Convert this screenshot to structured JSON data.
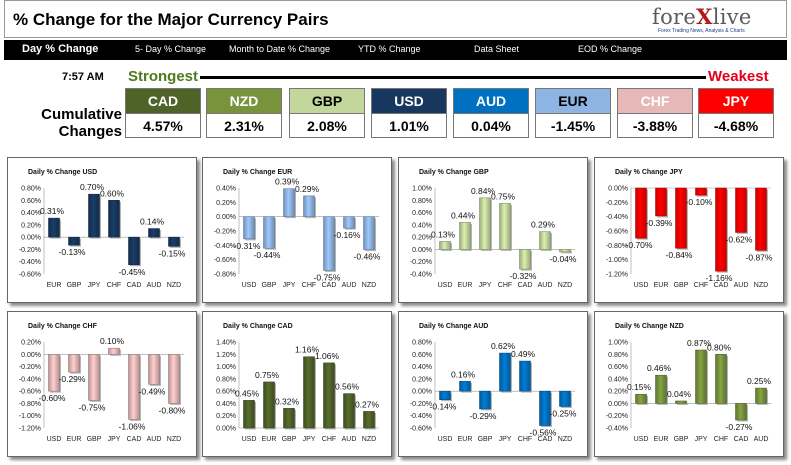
{
  "header": {
    "title": "% Change for the Major Currency Pairs",
    "logo_text_a": "fore",
    "logo_text_x": "X",
    "logo_text_b": "live",
    "logo_tagline": "Forex Trading News, Analysis & Charts"
  },
  "tabs": [
    {
      "label": "Day % Change",
      "active": true
    },
    {
      "label": "5- Day % Change"
    },
    {
      "label": "Month to Date % Change"
    },
    {
      "label": "YTD % Change"
    },
    {
      "label": "Data Sheet"
    },
    {
      "label": "EOD % Change"
    }
  ],
  "summary": {
    "time": "7:57 AM",
    "strongest_label": "Strongest",
    "weakest_label": "Weakest",
    "cumulative_label_line1": "Cumulative",
    "cumulative_label_line2": "Changes",
    "currencies": [
      {
        "code": "CAD",
        "value": "4.57%",
        "bg": "#4f6228",
        "fg": "#ffffff"
      },
      {
        "code": "NZD",
        "value": "2.31%",
        "bg": "#77933c",
        "fg": "#ffffff"
      },
      {
        "code": "GBP",
        "value": "2.08%",
        "bg": "#c3d69b",
        "fg": "#000000"
      },
      {
        "code": "USD",
        "value": "1.01%",
        "bg": "#17375e",
        "fg": "#ffffff"
      },
      {
        "code": "AUD",
        "value": "0.04%",
        "bg": "#0070c0",
        "fg": "#ffffff"
      },
      {
        "code": "EUR",
        "value": "-1.45%",
        "bg": "#8eb4e3",
        "fg": "#000000"
      },
      {
        "code": "CHF",
        "value": "-3.88%",
        "bg": "#e6b9b8",
        "fg": "#ffffff"
      },
      {
        "code": "JPY",
        "value": "-4.68%",
        "bg": "#ff0000",
        "fg": "#ffffff"
      }
    ]
  },
  "chart_data": [
    {
      "type": "bar",
      "title": "Daily % Change USD",
      "categories": [
        "EUR",
        "GBP",
        "JPY",
        "CHF",
        "CAD",
        "AUD",
        "NZD"
      ],
      "values": [
        0.31,
        -0.13,
        0.7,
        0.6,
        -0.45,
        0.14,
        -0.15
      ],
      "labels": [
        "0.31%",
        "-0.13%",
        "0.70%",
        "0.60%",
        "-0.45%",
        "0.14%",
        "-0.15%"
      ],
      "ylim": [
        -0.6,
        0.8
      ],
      "yticks": [
        "0.80%",
        "0.60%",
        "0.40%",
        "0.20%",
        "0.00%",
        "-0.20%",
        "-0.40%",
        "-0.60%"
      ],
      "color": "#17375e"
    },
    {
      "type": "bar",
      "title": "Daily % Change EUR",
      "categories": [
        "USD",
        "GBP",
        "JPY",
        "CHF",
        "CAD",
        "AUD",
        "NZD"
      ],
      "values": [
        -0.31,
        -0.44,
        0.39,
        0.29,
        -0.75,
        -0.16,
        -0.46
      ],
      "labels": [
        "-0.31%",
        "-0.44%",
        "0.39%",
        "0.29%",
        "-0.75%",
        "-0.16%",
        "-0.46%"
      ],
      "ylim": [
        -0.8,
        0.4
      ],
      "yticks": [
        "0.40%",
        "0.20%",
        "0.00%",
        "-0.20%",
        "-0.40%",
        "-0.60%",
        "-0.80%"
      ],
      "color": "#8eb4e3"
    },
    {
      "type": "bar",
      "title": "Daily % Change GBP",
      "categories": [
        "USD",
        "EUR",
        "JPY",
        "CHF",
        "CAD",
        "AUD",
        "NZD"
      ],
      "values": [
        0.13,
        0.44,
        0.84,
        0.75,
        -0.32,
        0.29,
        -0.04
      ],
      "labels": [
        "0.13%",
        "0.44%",
        "0.84%",
        "0.75%",
        "-0.32%",
        "0.29%",
        "-0.04%"
      ],
      "ylim": [
        -0.4,
        1.0
      ],
      "yticks": [
        "1.00%",
        "0.80%",
        "0.60%",
        "0.40%",
        "0.20%",
        "0.00%",
        "-0.20%",
        "-0.40%"
      ],
      "color": "#c3d69b"
    },
    {
      "type": "bar",
      "title": "Daily % Change JPY",
      "categories": [
        "USD",
        "EUR",
        "GBP",
        "CHF",
        "CAD",
        "AUD",
        "NZD"
      ],
      "values": [
        -0.7,
        -0.39,
        -0.84,
        -0.1,
        -1.16,
        -0.62,
        -0.87
      ],
      "labels": [
        "-0.70%",
        "-0.39%",
        "-0.84%",
        "-0.10%",
        "-1.16%",
        "-0.62%",
        "-0.87%"
      ],
      "ylim": [
        -1.2,
        0.0
      ],
      "yticks": [
        "0.00%",
        "-0.20%",
        "-0.40%",
        "-0.60%",
        "-0.80%",
        "-1.00%",
        "-1.20%"
      ],
      "color": "#ff0000"
    },
    {
      "type": "bar",
      "title": "Daily % Change CHF",
      "categories": [
        "USD",
        "EUR",
        "GBP",
        "JPY",
        "CAD",
        "AUD",
        "NZD"
      ],
      "values": [
        -0.6,
        -0.29,
        -0.75,
        0.1,
        -1.06,
        -0.49,
        -0.8
      ],
      "labels": [
        "-0.60%",
        "-0.29%",
        "-0.75%",
        "0.10%",
        "-1.06%",
        "-0.49%",
        "-0.80%"
      ],
      "ylim": [
        -1.2,
        0.2
      ],
      "yticks": [
        "0.20%",
        "0.00%",
        "-0.20%",
        "-0.40%",
        "-0.60%",
        "-0.80%",
        "-1.00%",
        "-1.20%"
      ],
      "color": "#e6b9b8"
    },
    {
      "type": "bar",
      "title": "Daily % Change CAD",
      "categories": [
        "USD",
        "EUR",
        "GBP",
        "JPY",
        "CHF",
        "AUD",
        "NZD"
      ],
      "values": [
        0.45,
        0.75,
        0.32,
        1.16,
        1.06,
        0.56,
        0.27
      ],
      "labels": [
        "0.45%",
        "0.75%",
        "0.32%",
        "1.16%",
        "1.06%",
        "0.56%",
        "0.27%"
      ],
      "ylim": [
        0.0,
        1.4
      ],
      "yticks": [
        "1.40%",
        "1.20%",
        "1.00%",
        "0.80%",
        "0.60%",
        "0.40%",
        "0.20%",
        "0.00%"
      ],
      "color": "#4f6228"
    },
    {
      "type": "bar",
      "title": "Daily % Change AUD",
      "categories": [
        "USD",
        "EUR",
        "GBP",
        "JPY",
        "CHF",
        "CAD",
        "NZD"
      ],
      "values": [
        -0.14,
        0.16,
        -0.29,
        0.62,
        0.49,
        -0.56,
        -0.25
      ],
      "labels": [
        "-0.14%",
        "0.16%",
        "-0.29%",
        "0.62%",
        "0.49%",
        "-0.56%",
        "-0.25%"
      ],
      "ylim": [
        -0.6,
        0.8
      ],
      "yticks": [
        "0.80%",
        "0.60%",
        "0.40%",
        "0.20%",
        "0.00%",
        "-0.20%",
        "-0.40%",
        "-0.60%"
      ],
      "color": "#0070c0"
    },
    {
      "type": "bar",
      "title": "Daily % Change NZD",
      "categories": [
        "USD",
        "EUR",
        "GBP",
        "JPY",
        "CHF",
        "CAD",
        "AUD"
      ],
      "values": [
        0.15,
        0.46,
        0.04,
        0.87,
        0.8,
        -0.27,
        0.25
      ],
      "labels": [
        "0.15%",
        "0.46%",
        "0.04%",
        "0.87%",
        "0.80%",
        "-0.27%",
        "0.25%"
      ],
      "ylim": [
        -0.4,
        1.0
      ],
      "yticks": [
        "1.00%",
        "0.80%",
        "0.60%",
        "0.40%",
        "0.20%",
        "0.00%",
        "-0.20%",
        "-0.40%"
      ],
      "color": "#77933c"
    }
  ]
}
